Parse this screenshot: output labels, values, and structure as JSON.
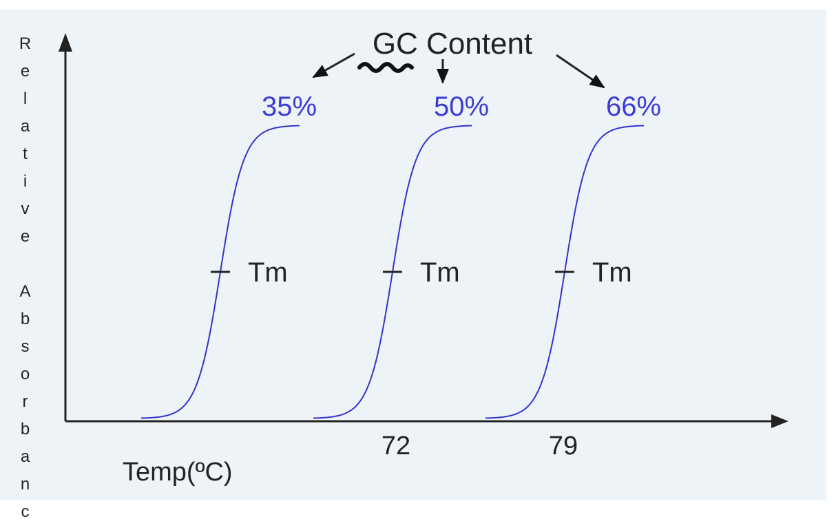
{
  "title": "GC Content",
  "curves": [
    {
      "label": "35%",
      "tm_label": "Tm"
    },
    {
      "label": "50%",
      "tm_label": "Tm"
    },
    {
      "label": "66%",
      "tm_label": "Tm"
    }
  ],
  "x_axis": {
    "label": "Temp(ºC)",
    "tick_labels": [
      "72",
      "79"
    ]
  },
  "y_axis": {
    "label": "Relative Absorbanc"
  }
}
